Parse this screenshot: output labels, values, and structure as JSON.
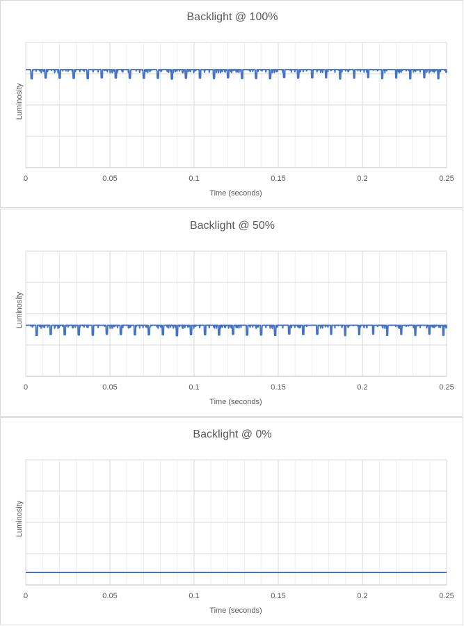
{
  "chart_data": [
    {
      "type": "line",
      "title": "Backlight @ 100%",
      "xlabel": "Time (seconds)",
      "ylabel": "Luminosity",
      "xlim": [
        0,
        0.25
      ],
      "ylim": [
        0,
        4
      ],
      "x_ticks": [
        "0",
        "0.05",
        "0.1",
        "0.15",
        "0.2",
        "0.25"
      ],
      "grid": true,
      "color": "#4472c4",
      "series": [
        {
          "baseline": 3.13,
          "pulse_period_s": 0.00833,
          "pulse_min": 2.83,
          "pulse_first_s": 0.0035,
          "ripple_min": 3.03
        }
      ]
    },
    {
      "type": "line",
      "title": "Backlight @ 50%",
      "xlabel": "Time (seconds)",
      "ylabel": "Luminosity",
      "xlim": [
        0,
        0.25
      ],
      "ylim": [
        0,
        4
      ],
      "x_ticks": [
        "0",
        "0.05",
        "0.1",
        "0.15",
        "0.2",
        "0.25"
      ],
      "grid": true,
      "color": "#4472c4",
      "series": [
        {
          "baseline": 1.63,
          "pulse_period_s": 0.00833,
          "pulse_min": 1.3,
          "pulse_first_s": 0.0065,
          "ripple_min": 1.53
        }
      ]
    },
    {
      "type": "line",
      "title": "Backlight @ 0%",
      "xlabel": "Time (seconds)",
      "ylabel": "Luminosity",
      "xlim": [
        0,
        0.25
      ],
      "ylim": [
        0,
        4
      ],
      "x_ticks": [
        "0",
        "0.05",
        "0.1",
        "0.15",
        "0.2",
        "0.25"
      ],
      "grid": true,
      "color": "#4472c4",
      "series": [
        {
          "baseline": 0.4,
          "pulse_period_s": 0,
          "pulse_min": 0.4,
          "pulse_first_s": 0,
          "ripple_min": 0.4
        }
      ]
    }
  ]
}
